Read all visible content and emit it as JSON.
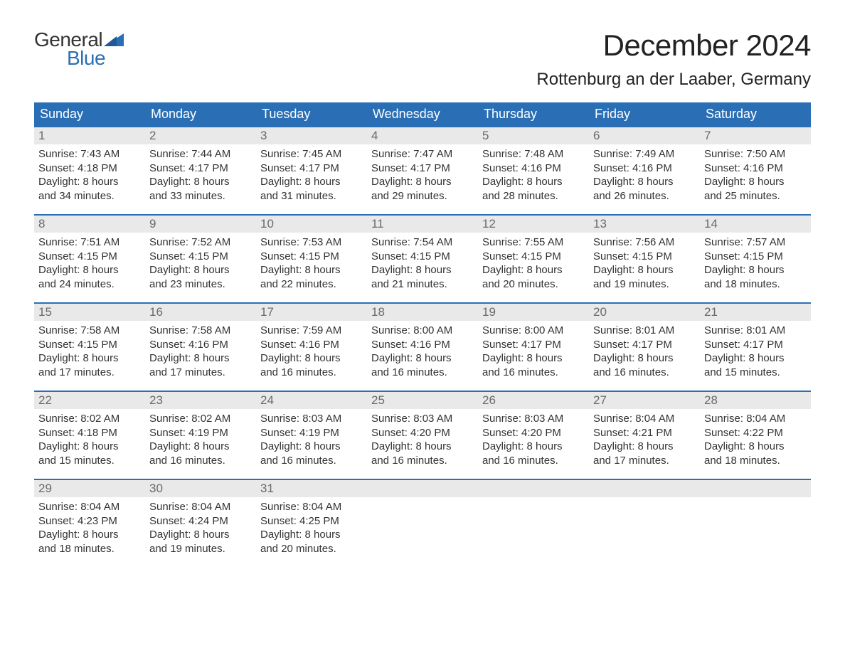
{
  "logo": {
    "word1": "General",
    "word2": "Blue",
    "text_color": "#333333",
    "accent_color": "#2a6fb5"
  },
  "title": "December 2024",
  "location": "Rottenburg an der Laaber, Germany",
  "colors": {
    "header_bg": "#2a6fb5",
    "header_text": "#ffffff",
    "daynum_bg": "#e9e9e9",
    "daynum_text": "#6a6a6a",
    "body_text": "#333333",
    "week_border": "#2a6fb5",
    "page_bg": "#ffffff"
  },
  "typography": {
    "title_fontsize_pt": 32,
    "location_fontsize_pt": 18,
    "weekday_fontsize_pt": 14,
    "daynum_fontsize_pt": 13,
    "body_fontsize_pt": 11,
    "font_family": "Arial"
  },
  "weekdays": [
    "Sunday",
    "Monday",
    "Tuesday",
    "Wednesday",
    "Thursday",
    "Friday",
    "Saturday"
  ],
  "labels": {
    "sunrise": "Sunrise:",
    "sunset": "Sunset:",
    "daylight": "Daylight:"
  },
  "weeks": [
    [
      {
        "day": "1",
        "sunrise": "7:43 AM",
        "sunset": "4:18 PM",
        "daylight_line1": "8 hours",
        "daylight_line2": "and 34 minutes."
      },
      {
        "day": "2",
        "sunrise": "7:44 AM",
        "sunset": "4:17 PM",
        "daylight_line1": "8 hours",
        "daylight_line2": "and 33 minutes."
      },
      {
        "day": "3",
        "sunrise": "7:45 AM",
        "sunset": "4:17 PM",
        "daylight_line1": "8 hours",
        "daylight_line2": "and 31 minutes."
      },
      {
        "day": "4",
        "sunrise": "7:47 AM",
        "sunset": "4:17 PM",
        "daylight_line1": "8 hours",
        "daylight_line2": "and 29 minutes."
      },
      {
        "day": "5",
        "sunrise": "7:48 AM",
        "sunset": "4:16 PM",
        "daylight_line1": "8 hours",
        "daylight_line2": "and 28 minutes."
      },
      {
        "day": "6",
        "sunrise": "7:49 AM",
        "sunset": "4:16 PM",
        "daylight_line1": "8 hours",
        "daylight_line2": "and 26 minutes."
      },
      {
        "day": "7",
        "sunrise": "7:50 AM",
        "sunset": "4:16 PM",
        "daylight_line1": "8 hours",
        "daylight_line2": "and 25 minutes."
      }
    ],
    [
      {
        "day": "8",
        "sunrise": "7:51 AM",
        "sunset": "4:15 PM",
        "daylight_line1": "8 hours",
        "daylight_line2": "and 24 minutes."
      },
      {
        "day": "9",
        "sunrise": "7:52 AM",
        "sunset": "4:15 PM",
        "daylight_line1": "8 hours",
        "daylight_line2": "and 23 minutes."
      },
      {
        "day": "10",
        "sunrise": "7:53 AM",
        "sunset": "4:15 PM",
        "daylight_line1": "8 hours",
        "daylight_line2": "and 22 minutes."
      },
      {
        "day": "11",
        "sunrise": "7:54 AM",
        "sunset": "4:15 PM",
        "daylight_line1": "8 hours",
        "daylight_line2": "and 21 minutes."
      },
      {
        "day": "12",
        "sunrise": "7:55 AM",
        "sunset": "4:15 PM",
        "daylight_line1": "8 hours",
        "daylight_line2": "and 20 minutes."
      },
      {
        "day": "13",
        "sunrise": "7:56 AM",
        "sunset": "4:15 PM",
        "daylight_line1": "8 hours",
        "daylight_line2": "and 19 minutes."
      },
      {
        "day": "14",
        "sunrise": "7:57 AM",
        "sunset": "4:15 PM",
        "daylight_line1": "8 hours",
        "daylight_line2": "and 18 minutes."
      }
    ],
    [
      {
        "day": "15",
        "sunrise": "7:58 AM",
        "sunset": "4:15 PM",
        "daylight_line1": "8 hours",
        "daylight_line2": "and 17 minutes."
      },
      {
        "day": "16",
        "sunrise": "7:58 AM",
        "sunset": "4:16 PM",
        "daylight_line1": "8 hours",
        "daylight_line2": "and 17 minutes."
      },
      {
        "day": "17",
        "sunrise": "7:59 AM",
        "sunset": "4:16 PM",
        "daylight_line1": "8 hours",
        "daylight_line2": "and 16 minutes."
      },
      {
        "day": "18",
        "sunrise": "8:00 AM",
        "sunset": "4:16 PM",
        "daylight_line1": "8 hours",
        "daylight_line2": "and 16 minutes."
      },
      {
        "day": "19",
        "sunrise": "8:00 AM",
        "sunset": "4:17 PM",
        "daylight_line1": "8 hours",
        "daylight_line2": "and 16 minutes."
      },
      {
        "day": "20",
        "sunrise": "8:01 AM",
        "sunset": "4:17 PM",
        "daylight_line1": "8 hours",
        "daylight_line2": "and 16 minutes."
      },
      {
        "day": "21",
        "sunrise": "8:01 AM",
        "sunset": "4:17 PM",
        "daylight_line1": "8 hours",
        "daylight_line2": "and 15 minutes."
      }
    ],
    [
      {
        "day": "22",
        "sunrise": "8:02 AM",
        "sunset": "4:18 PM",
        "daylight_line1": "8 hours",
        "daylight_line2": "and 15 minutes."
      },
      {
        "day": "23",
        "sunrise": "8:02 AM",
        "sunset": "4:19 PM",
        "daylight_line1": "8 hours",
        "daylight_line2": "and 16 minutes."
      },
      {
        "day": "24",
        "sunrise": "8:03 AM",
        "sunset": "4:19 PM",
        "daylight_line1": "8 hours",
        "daylight_line2": "and 16 minutes."
      },
      {
        "day": "25",
        "sunrise": "8:03 AM",
        "sunset": "4:20 PM",
        "daylight_line1": "8 hours",
        "daylight_line2": "and 16 minutes."
      },
      {
        "day": "26",
        "sunrise": "8:03 AM",
        "sunset": "4:20 PM",
        "daylight_line1": "8 hours",
        "daylight_line2": "and 16 minutes."
      },
      {
        "day": "27",
        "sunrise": "8:04 AM",
        "sunset": "4:21 PM",
        "daylight_line1": "8 hours",
        "daylight_line2": "and 17 minutes."
      },
      {
        "day": "28",
        "sunrise": "8:04 AM",
        "sunset": "4:22 PM",
        "daylight_line1": "8 hours",
        "daylight_line2": "and 18 minutes."
      }
    ],
    [
      {
        "day": "29",
        "sunrise": "8:04 AM",
        "sunset": "4:23 PM",
        "daylight_line1": "8 hours",
        "daylight_line2": "and 18 minutes."
      },
      {
        "day": "30",
        "sunrise": "8:04 AM",
        "sunset": "4:24 PM",
        "daylight_line1": "8 hours",
        "daylight_line2": "and 19 minutes."
      },
      {
        "day": "31",
        "sunrise": "8:04 AM",
        "sunset": "4:25 PM",
        "daylight_line1": "8 hours",
        "daylight_line2": "and 20 minutes."
      },
      {
        "empty": true
      },
      {
        "empty": true
      },
      {
        "empty": true
      },
      {
        "empty": true
      }
    ]
  ]
}
